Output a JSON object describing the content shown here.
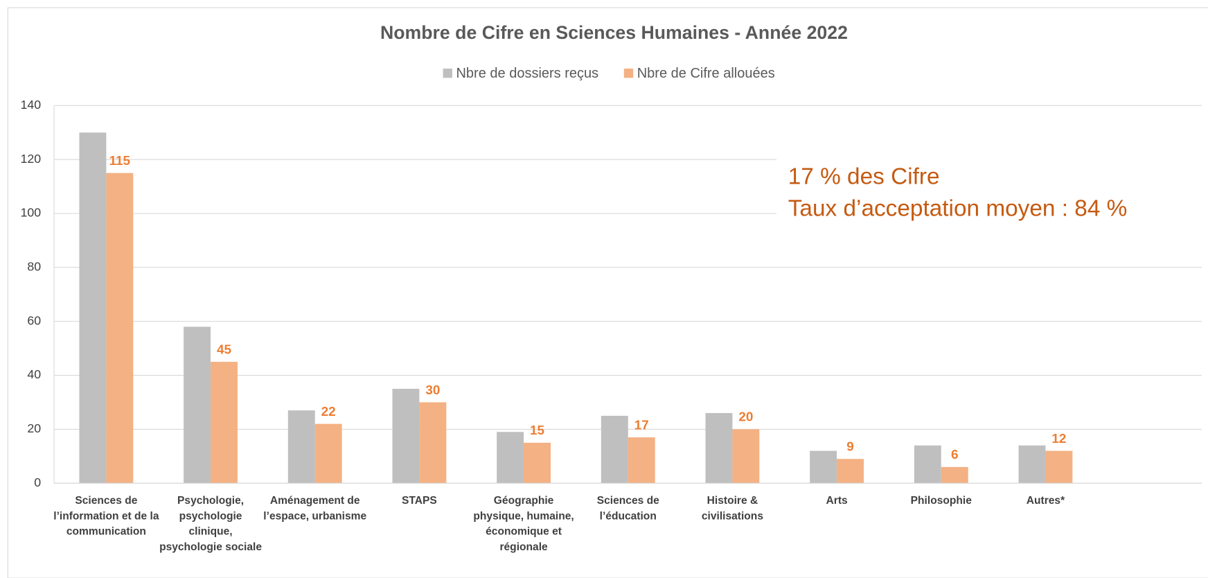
{
  "chart_data": {
    "type": "bar",
    "title": "Nombre de Cifre en Sciences Humaines - Année 2022",
    "categories": [
      "Sciences de l’information et de la communication",
      "Psychologie, psychologie clinique, psychologie sociale",
      "Aménagement de l’espace, urbanisme",
      "STAPS",
      "Géographie physique, humaine, économique et régionale",
      "Sciences de l’éducation",
      "Histoire & civilisations",
      "Arts",
      "Philosophie",
      "Autres*"
    ],
    "series": [
      {
        "name": "Nbre de dossiers reçus",
        "color": "#bfbfbf",
        "values": [
          130,
          58,
          27,
          35,
          19,
          25,
          26,
          12,
          14,
          14
        ]
      },
      {
        "name": "Nbre de Cifre allouées",
        "color": "#f4b183",
        "values": [
          115,
          45,
          22,
          30,
          15,
          17,
          20,
          9,
          6,
          12
        ],
        "labels": true
      }
    ],
    "ylim": [
      0,
      140
    ],
    "yticks": [
      0,
      20,
      40,
      60,
      80,
      100,
      120,
      140
    ],
    "grid": true,
    "legend": "top",
    "annotations": [
      "17 % des Cifre",
      "Taux d’acceptation moyen : 84 %"
    ]
  }
}
